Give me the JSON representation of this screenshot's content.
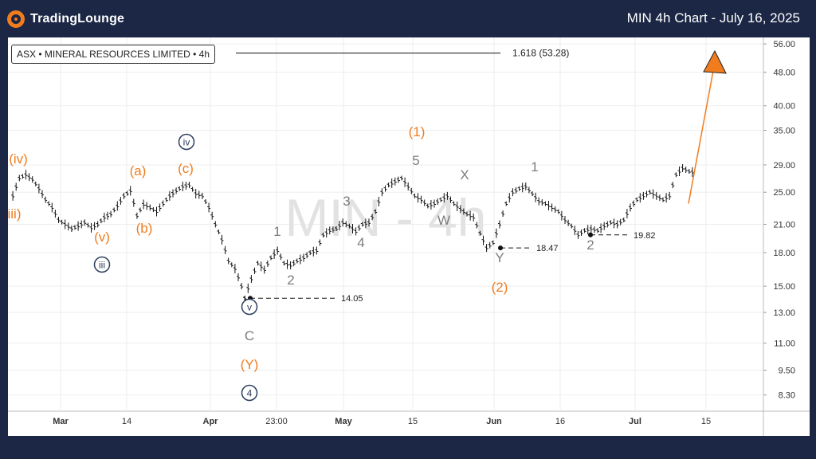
{
  "header": {
    "brand_name": "TradingLounge",
    "title": "MIN 4h Chart - July 16, 2025"
  },
  "info_box": "ASX • MINERAL RESOURCES LIMITED • 4h",
  "watermark": "MIN - 4h",
  "colors": {
    "background": "#1b2745",
    "orange": "#f07c1e",
    "gray": "#7d7d7d",
    "navy": "#2d3e5e",
    "candle": "#111111"
  },
  "chart_data": {
    "type": "line",
    "y_scale": "log",
    "ylim": [
      7.6,
      58
    ],
    "y_ticks": [
      "56.00",
      "48.00",
      "40.00",
      "35.00",
      "29.00",
      "25.00",
      "21.00",
      "18.00",
      "15.00",
      "13.00",
      "11.00",
      "9.50",
      "8.30"
    ],
    "x_ticks": [
      "Mar",
      "14",
      "Apr",
      "23:00",
      "May",
      "15",
      "Jun",
      "16",
      "Jul",
      "15"
    ],
    "grid": true,
    "series": [
      {
        "values": [
          [
            1,
            24.5
          ],
          [
            3,
            27.0
          ],
          [
            5,
            27.5
          ],
          [
            7,
            26.8
          ],
          [
            9,
            25.5
          ],
          [
            11,
            24.0
          ],
          [
            13,
            23.0
          ],
          [
            15,
            21.5
          ],
          [
            17,
            21.0
          ],
          [
            19,
            20.5
          ],
          [
            21,
            20.8
          ],
          [
            23,
            21.2
          ],
          [
            25,
            20.6
          ],
          [
            27,
            21.0
          ],
          [
            29,
            21.8
          ],
          [
            31,
            22.2
          ],
          [
            33,
            23.2
          ],
          [
            35,
            24.5
          ],
          [
            37,
            25.2
          ],
          [
            39,
            22.0
          ],
          [
            41,
            23.4
          ],
          [
            43,
            23.0
          ],
          [
            45,
            22.5
          ],
          [
            47,
            23.5
          ],
          [
            49,
            24.5
          ],
          [
            51,
            25.2
          ],
          [
            53,
            25.8
          ],
          [
            55,
            26.0
          ],
          [
            57,
            24.8
          ],
          [
            59,
            24.5
          ],
          [
            61,
            23.0
          ],
          [
            63,
            21.0
          ],
          [
            65,
            19.3
          ],
          [
            67,
            17.2
          ],
          [
            69,
            16.5
          ],
          [
            71,
            15.0
          ],
          [
            72,
            14.05
          ],
          [
            74,
            15.6
          ],
          [
            76,
            17.0
          ],
          [
            78,
            16.4
          ],
          [
            80,
            17.5
          ],
          [
            82,
            18.2
          ],
          [
            84,
            17.0
          ],
          [
            86,
            16.8
          ],
          [
            88,
            17.2
          ],
          [
            90,
            17.5
          ],
          [
            92,
            18.0
          ],
          [
            94,
            18.2
          ],
          [
            96,
            19.8
          ],
          [
            98,
            20.3
          ],
          [
            100,
            20.5
          ],
          [
            102,
            21.2
          ],
          [
            104,
            20.8
          ],
          [
            106,
            20.2
          ],
          [
            108,
            21.0
          ],
          [
            110,
            21.2
          ],
          [
            112,
            22.5
          ],
          [
            114,
            25.0
          ],
          [
            116,
            26.0
          ],
          [
            118,
            26.5
          ],
          [
            120,
            27.0
          ],
          [
            122,
            25.8
          ],
          [
            124,
            24.5
          ],
          [
            126,
            24.0
          ],
          [
            128,
            23.2
          ],
          [
            130,
            23.5
          ],
          [
            132,
            24.0
          ],
          [
            134,
            24.5
          ],
          [
            136,
            23.5
          ],
          [
            138,
            22.8
          ],
          [
            140,
            22.2
          ],
          [
            142,
            21.8
          ],
          [
            144,
            20.0
          ],
          [
            146,
            18.47
          ],
          [
            148,
            19.0
          ],
          [
            150,
            21.0
          ],
          [
            152,
            23.5
          ],
          [
            154,
            25.0
          ],
          [
            156,
            25.5
          ],
          [
            158,
            25.8
          ],
          [
            160,
            24.8
          ],
          [
            162,
            23.8
          ],
          [
            164,
            23.5
          ],
          [
            166,
            23.0
          ],
          [
            168,
            22.5
          ],
          [
            170,
            21.5
          ],
          [
            172,
            20.8
          ],
          [
            174,
            19.82
          ],
          [
            176,
            20.3
          ],
          [
            178,
            20.5
          ],
          [
            180,
            20.3
          ],
          [
            182,
            20.8
          ],
          [
            184,
            21.2
          ],
          [
            186,
            21.0
          ],
          [
            188,
            21.5
          ],
          [
            190,
            23.0
          ],
          [
            192,
            24.0
          ],
          [
            194,
            24.5
          ],
          [
            196,
            25.0
          ],
          [
            198,
            24.5
          ],
          [
            200,
            24.0
          ],
          [
            202,
            24.5
          ],
          [
            204,
            27.5
          ],
          [
            206,
            28.5
          ],
          [
            208,
            28.0
          ],
          [
            210,
            27.8
          ]
        ]
      }
    ],
    "levels": [
      {
        "label": "1.618 (53.28)",
        "value": 53.28
      },
      {
        "label": "14.05",
        "value": 14.05
      },
      {
        "label": "18.47",
        "value": 18.47
      },
      {
        "label": "19.82",
        "value": 19.82
      }
    ],
    "projection": {
      "from": [
        202,
        23.5
      ],
      "to": [
        212,
        49.5
      ]
    },
    "wave_labels": [
      {
        "text": "(iv)",
        "color": "orange"
      },
      {
        "text": "iii)",
        "color": "orange"
      },
      {
        "text": "(v)",
        "color": "orange"
      },
      {
        "text": "iii",
        "color": "navy",
        "circle": true
      },
      {
        "text": "(a)",
        "color": "orange"
      },
      {
        "text": "(b)",
        "color": "orange"
      },
      {
        "text": "iv",
        "color": "navy",
        "circle": true
      },
      {
        "text": "(c)",
        "color": "orange"
      },
      {
        "text": "1",
        "color": "gray"
      },
      {
        "text": "2",
        "color": "gray"
      },
      {
        "text": "v",
        "color": "navy",
        "circle": true
      },
      {
        "text": "C",
        "color": "gray"
      },
      {
        "text": "(Y)",
        "color": "orange"
      },
      {
        "text": "4",
        "color": "navy",
        "circle": true,
        "filled": true
      },
      {
        "text": "3",
        "color": "gray"
      },
      {
        "text": "4",
        "color": "gray"
      },
      {
        "text": "(1)",
        "color": "orange"
      },
      {
        "text": "5",
        "color": "gray"
      },
      {
        "text": "X",
        "color": "gray"
      },
      {
        "text": "W",
        "color": "gray"
      },
      {
        "text": "Y",
        "color": "gray"
      },
      {
        "text": "(2)",
        "color": "orange"
      },
      {
        "text": "1",
        "color": "gray"
      },
      {
        "text": "2",
        "color": "gray"
      }
    ]
  }
}
